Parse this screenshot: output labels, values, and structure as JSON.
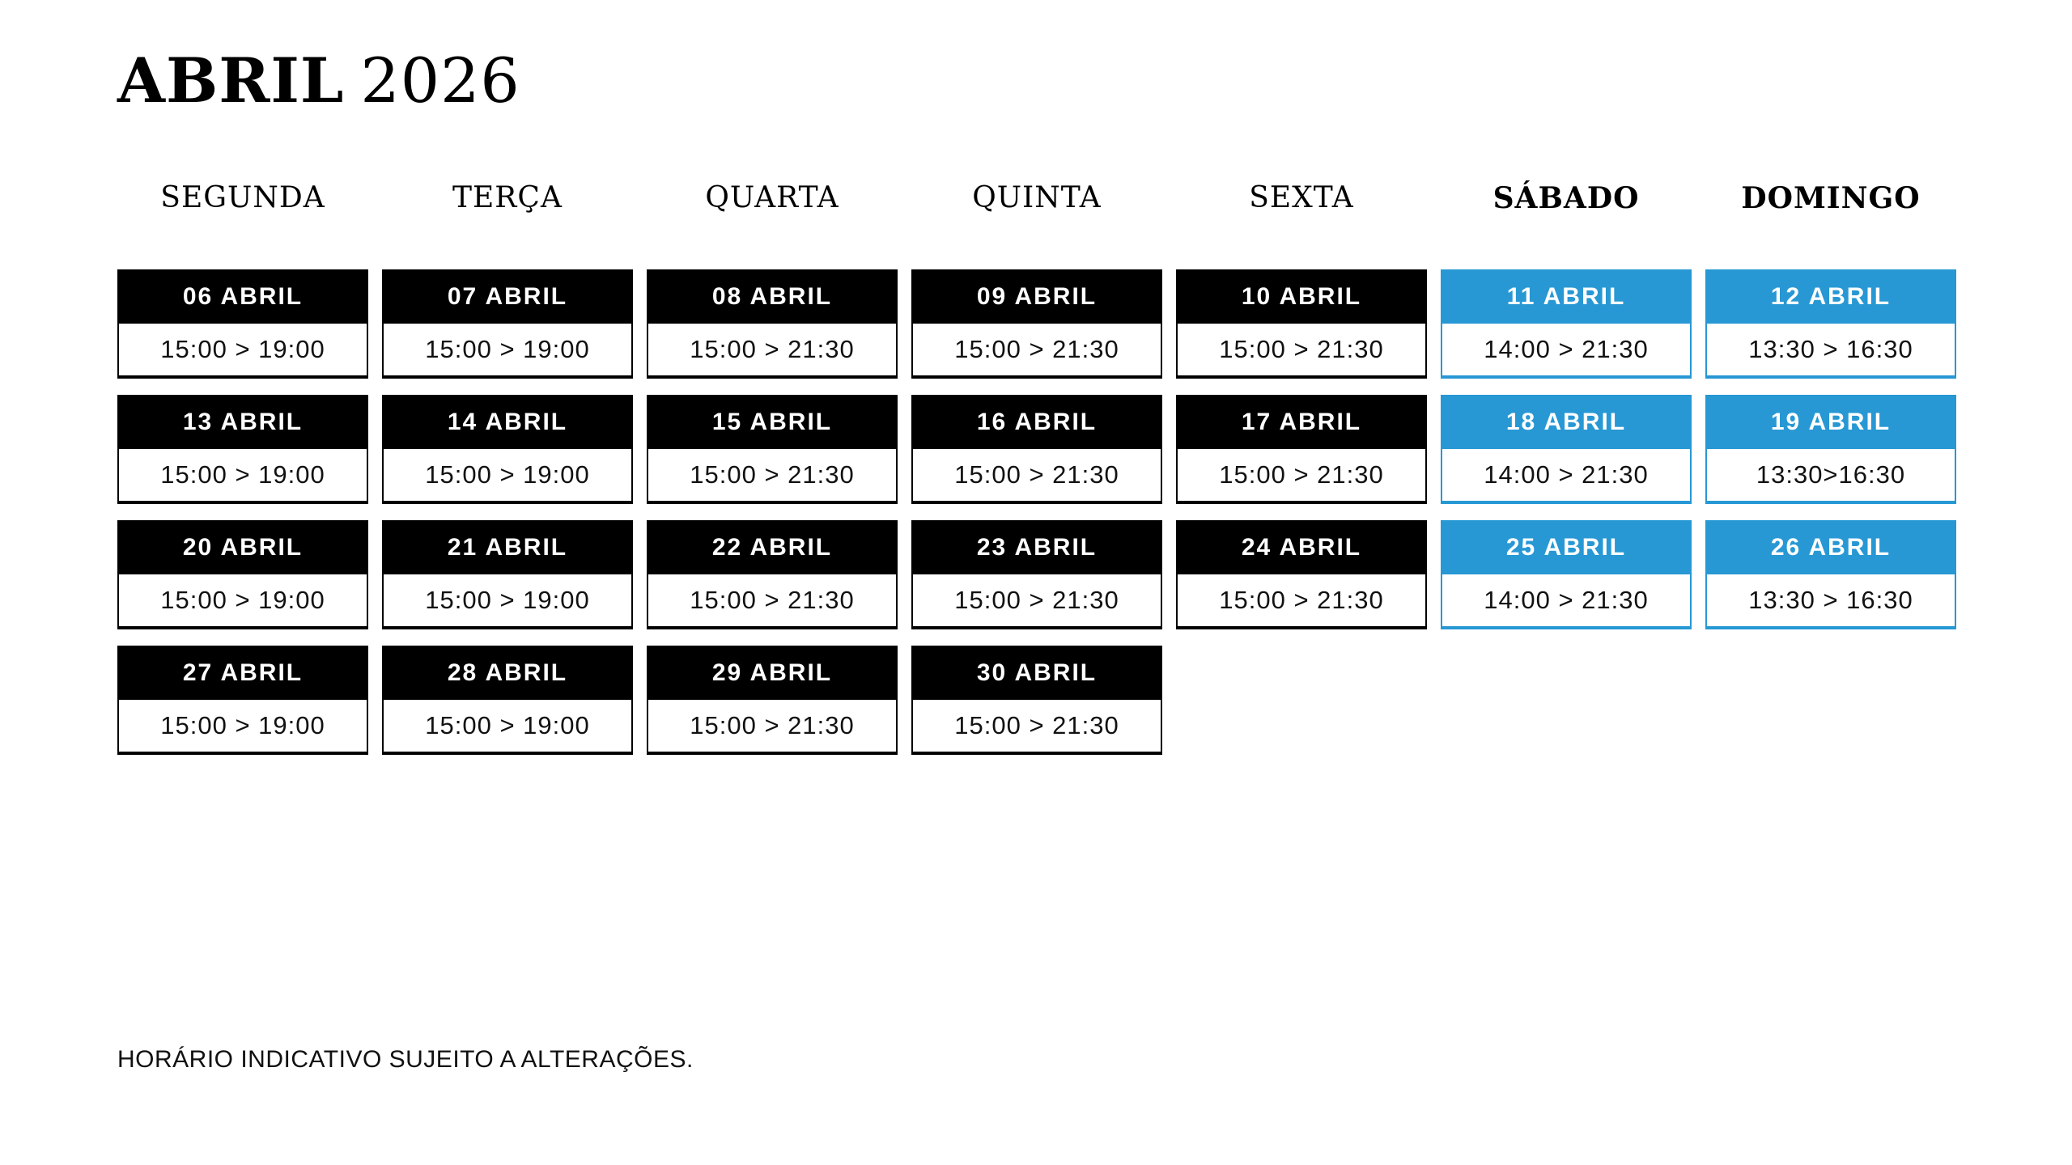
{
  "title": {
    "month": "ABRIL",
    "year": "2026"
  },
  "weekdays": [
    {
      "label": "SEGUNDA",
      "weekend": false
    },
    {
      "label": "TERÇA",
      "weekend": false
    },
    {
      "label": "QUARTA",
      "weekend": false
    },
    {
      "label": "QUINTA",
      "weekend": false
    },
    {
      "label": "SEXTA",
      "weekend": false
    },
    {
      "label": "SÁBADO",
      "weekend": true
    },
    {
      "label": "DOMINGO",
      "weekend": true
    }
  ],
  "weeks": [
    {
      "days": [
        {
          "date": "06 ABRIL",
          "time": "15:00 > 19:00",
          "weekend": false
        },
        {
          "date": "07 ABRIL",
          "time": "15:00 > 19:00",
          "weekend": false
        },
        {
          "date": "08 ABRIL",
          "time": "15:00 > 21:30",
          "weekend": false
        },
        {
          "date": "09 ABRIL",
          "time": "15:00 > 21:30",
          "weekend": false
        },
        {
          "date": "10 ABRIL",
          "time": "15:00 > 21:30",
          "weekend": false
        },
        {
          "date": "11 ABRIL",
          "time": "14:00 > 21:30",
          "weekend": true
        },
        {
          "date": "12 ABRIL",
          "time": "13:30 > 16:30",
          "weekend": true
        }
      ]
    },
    {
      "days": [
        {
          "date": "13 ABRIL",
          "time": "15:00 > 19:00",
          "weekend": false
        },
        {
          "date": "14 ABRIL",
          "time": "15:00 > 19:00",
          "weekend": false
        },
        {
          "date": "15 ABRIL",
          "time": "15:00 > 21:30",
          "weekend": false
        },
        {
          "date": "16 ABRIL",
          "time": "15:00 > 21:30",
          "weekend": false
        },
        {
          "date": "17 ABRIL",
          "time": "15:00 > 21:30",
          "weekend": false
        },
        {
          "date": "18 ABRIL",
          "time": "14:00 > 21:30",
          "weekend": true
        },
        {
          "date": "19 ABRIL",
          "time": "13:30>16:30",
          "weekend": true
        }
      ]
    },
    {
      "days": [
        {
          "date": "20 ABRIL",
          "time": "15:00 > 19:00",
          "weekend": false
        },
        {
          "date": "21 ABRIL",
          "time": "15:00 > 19:00",
          "weekend": false
        },
        {
          "date": "22 ABRIL",
          "time": "15:00 > 21:30",
          "weekend": false
        },
        {
          "date": "23 ABRIL",
          "time": "15:00 > 21:30",
          "weekend": false
        },
        {
          "date": "24 ABRIL",
          "time": "15:00 > 21:30",
          "weekend": false
        },
        {
          "date": "25 ABRIL",
          "time": "14:00 > 21:30",
          "weekend": true
        },
        {
          "date": "26 ABRIL",
          "time": "13:30 > 16:30",
          "weekend": true
        }
      ]
    },
    {
      "days": [
        {
          "date": "27 ABRIL",
          "time": "15:00 > 19:00",
          "weekend": false
        },
        {
          "date": "28 ABRIL",
          "time": "15:00 > 19:00",
          "weekend": false
        },
        {
          "date": "29 ABRIL",
          "time": "15:00 > 21:30",
          "weekend": false
        },
        {
          "date": "30 ABRIL",
          "time": "15:00 > 21:30",
          "weekend": false
        }
      ]
    }
  ],
  "footer": {
    "note": "HORÁRIO INDICATIVO SUJEITO A ALTERAÇÕES."
  },
  "colors": {
    "weekday_header_bg": "#000000",
    "weekend_header_bg": "#2798D4",
    "header_text": "#FFFFFF",
    "body_text": "#111111",
    "page_bg": "#FFFFFF"
  }
}
